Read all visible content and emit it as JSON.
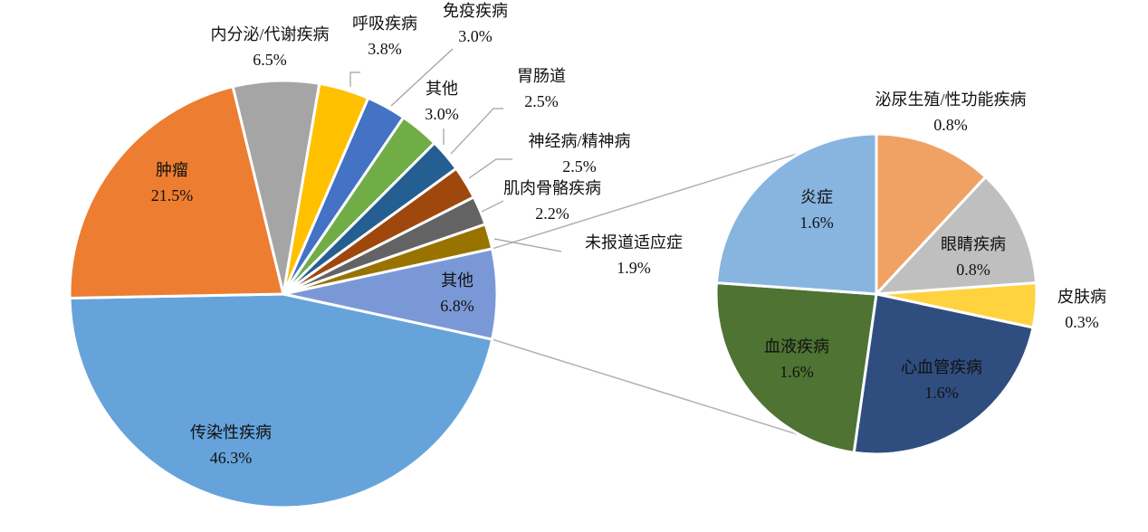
{
  "chart_data": [
    {
      "type": "pie",
      "categories": [
        "传染性疾病",
        "肿瘤",
        "内分泌/代谢疾病",
        "呼吸疾病",
        "免疫疾病",
        "其他",
        "胃肠道",
        "神经病/精神病",
        "肌肉骨骼疾病",
        "未报道适应症",
        "其他"
      ],
      "values": [
        46.3,
        21.5,
        6.5,
        3.8,
        3.0,
        3.0,
        2.5,
        2.5,
        2.2,
        1.9,
        6.8
      ],
      "value_labels": [
        "46.3%",
        "21.5%",
        "6.5%",
        "3.8%",
        "3.0%",
        "3.0%",
        "2.5%",
        "2.5%",
        "2.2%",
        "1.9%",
        "6.8%"
      ],
      "colors": [
        "#66a3da",
        "#ed7d31",
        "#a5a5a5",
        "#ffc000",
        "#4472c4",
        "#70ad47",
        "#255e91",
        "#9e480e",
        "#636363",
        "#997300",
        "#7b98d6"
      ]
    },
    {
      "type": "pie",
      "categories": [
        "泌尿生殖/性功能疾病",
        "眼睛疾病",
        "皮肤病",
        "心血管疾病",
        "血液疾病",
        "炎症"
      ],
      "values": [
        0.8,
        0.8,
        0.3,
        1.6,
        1.6,
        1.6
      ],
      "value_labels": [
        "0.8%",
        "0.8%",
        "0.3%",
        "1.6%",
        "1.6%",
        "1.6%"
      ],
      "colors": [
        "#f0a264",
        "#bfbfbf",
        "#ffd23f",
        "#2f4e7f",
        "#4e7332",
        "#88b4e0"
      ]
    }
  ]
}
